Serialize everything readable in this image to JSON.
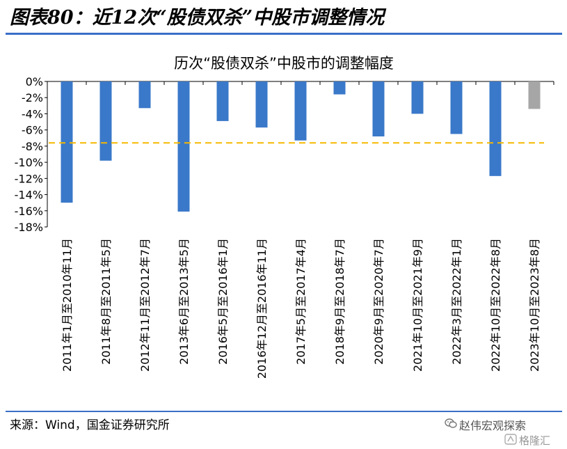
{
  "figure_title": "图表80：近12次“股债双杀”中股市调整情况",
  "source": "来源：Wind，国金证券研究所",
  "watermark": {
    "primary": "赵伟宏观探索",
    "secondary": "格隆汇"
  },
  "colors": {
    "bar": "#3a78c9",
    "bar_highlight": "#a6a6a6",
    "reference_line": "#f5b800",
    "rule": "#3a6fc7"
  },
  "icons": {
    "watermark_primary": "wechat-icon",
    "watermark_secondary": "glh-logo-icon"
  },
  "chart_data": {
    "type": "bar",
    "title": "历次“股债双杀”中股市的调整幅度",
    "categories": [
      "2011年1月至2010年11月",
      "2011年8月至2011年5月",
      "2012年11月至2012年7月",
      "2013年6月至2013年5月",
      "2016年5月至2016年1月",
      "2016年12月至2016年11月",
      "2017年5月至2017年4月",
      "2018年9月至2018年7月",
      "2020年9月至2020年7月",
      "2021年10月至2021年9月",
      "2022年3月至2022年1月",
      "2022年10月至2022年8月",
      "2023年10月至2023年8月"
    ],
    "values": [
      -15.0,
      -9.8,
      -3.3,
      -16.1,
      -4.9,
      -5.7,
      -7.3,
      -1.6,
      -6.8,
      -4.0,
      -6.5,
      -11.7,
      -3.4
    ],
    "highlight_index": 12,
    "reference_line": -7.6,
    "yticks": [
      "0%",
      "-2%",
      "-4%",
      "-6%",
      "-8%",
      "-10%",
      "-12%",
      "-14%",
      "-16%",
      "-18%"
    ],
    "ylim": [
      -18,
      0
    ],
    "grid": false,
    "xlabel": "",
    "ylabel": ""
  }
}
